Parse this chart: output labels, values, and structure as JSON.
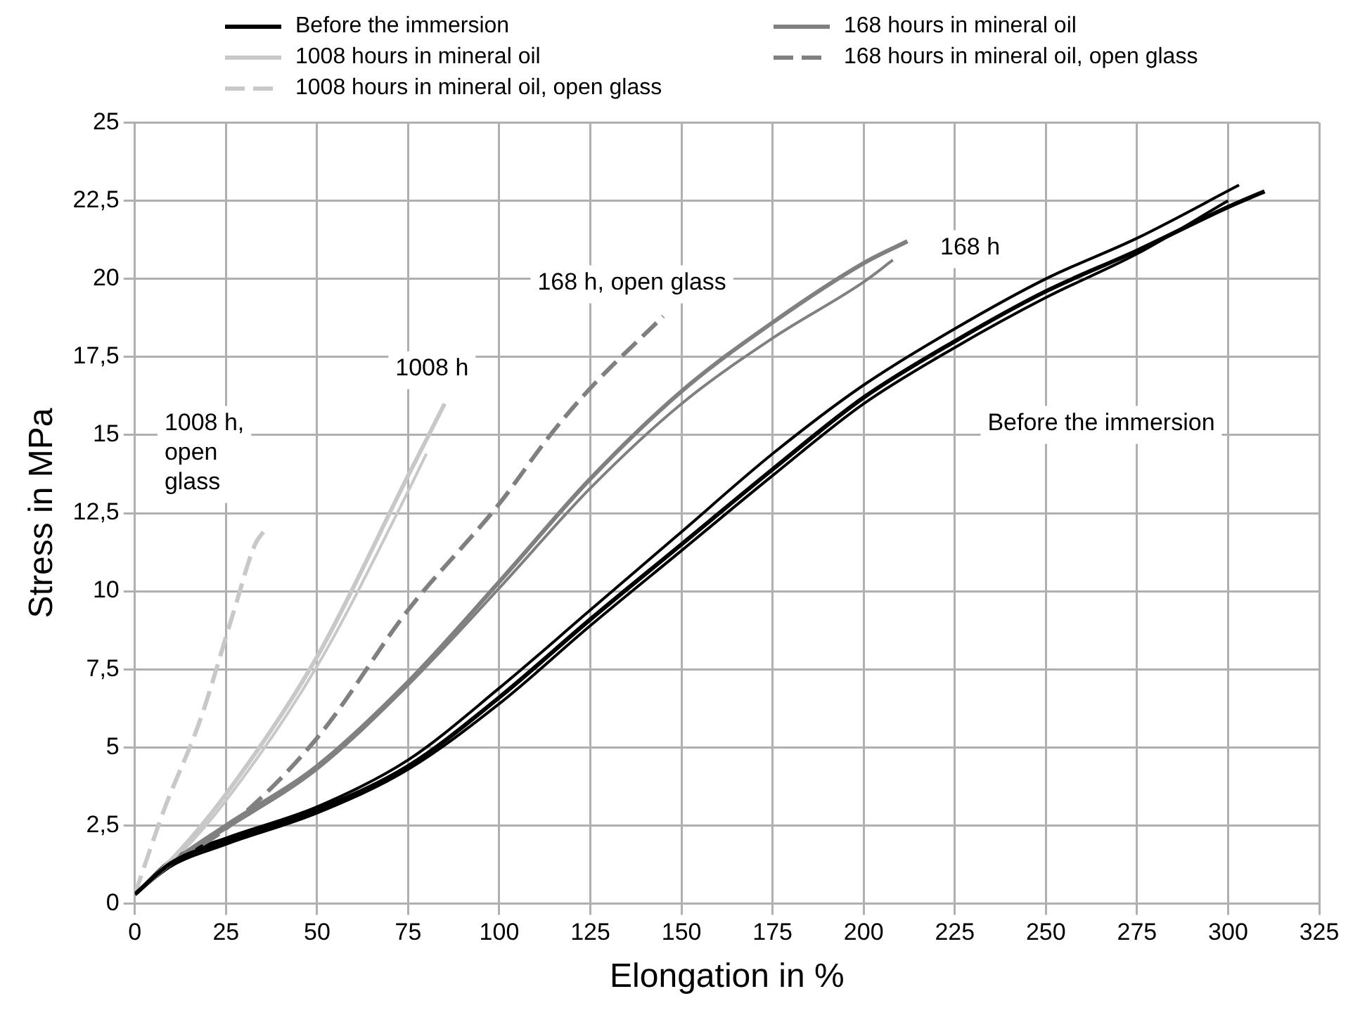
{
  "chart_data": {
    "type": "line",
    "xlabel": "Elongation in %",
    "ylabel": "Stress in MPa",
    "xlim": [
      0,
      325
    ],
    "xticks": [
      0,
      25,
      50,
      75,
      100,
      125,
      150,
      175,
      200,
      225,
      250,
      275,
      300,
      325
    ],
    "ylim": [
      0,
      25
    ],
    "yticks": [
      0,
      {
        "value": 2.5,
        "label": "2,5"
      },
      5,
      {
        "value": 7.5,
        "label": "7,5"
      },
      10,
      {
        "value": 12.5,
        "label": "12,5"
      },
      15,
      {
        "value": 17.5,
        "label": "17,5"
      },
      20,
      {
        "value": 22.5,
        "label": "22,5"
      },
      25
    ],
    "grid": true,
    "legend": "top",
    "marker": "none",
    "series": [
      {
        "name": "Before the immersion",
        "color": "#000000",
        "x": [
          0,
          10,
          25,
          50,
          75,
          100,
          125,
          150,
          175,
          200,
          225,
          250,
          275,
          300,
          310
        ],
        "values": [
          0.3,
          1.3,
          2.0,
          3.0,
          4.4,
          6.6,
          9.1,
          11.5,
          13.9,
          16.2,
          18.0,
          19.6,
          20.9,
          22.3,
          22.8
        ]
      },
      {
        "name": "1008 hours in mineral oil",
        "color": "#c8c8c8",
        "x": [
          0,
          10,
          25,
          50,
          75,
          85
        ],
        "values": [
          0.3,
          1.4,
          3.5,
          7.9,
          13.7,
          16.0
        ]
      },
      {
        "name": "1008 hours in mineral oil, open glass",
        "color": "#c8c8c8",
        "line_style": "dashed",
        "x": [
          0,
          8,
          18,
          27,
          33,
          36
        ],
        "values": [
          0.3,
          3.0,
          5.9,
          9.3,
          11.5,
          12.0
        ]
      },
      {
        "name": "168 hours in mineral oil",
        "color": "#808080",
        "x": [
          0,
          10,
          25,
          50,
          75,
          100,
          125,
          150,
          175,
          200,
          212
        ],
        "values": [
          0.3,
          1.3,
          2.5,
          4.4,
          7.1,
          10.3,
          13.6,
          16.4,
          18.6,
          20.5,
          21.2
        ]
      },
      {
        "name": "168 hours in mineral oil,  open glass",
        "color": "#808080",
        "line_style": "dashed",
        "x": [
          0,
          10,
          25,
          50,
          75,
          100,
          114,
          125,
          145
        ],
        "values": [
          0.3,
          1.3,
          2.4,
          5.3,
          9.4,
          12.8,
          15.0,
          16.5,
          18.8
        ]
      },
      {
        "color": "#000000",
        "x": [
          0,
          10,
          25,
          50,
          75,
          100,
          125,
          150,
          175,
          200,
          225,
          250,
          275,
          303
        ],
        "values": [
          0.3,
          1.4,
          2.1,
          3.1,
          4.6,
          6.9,
          9.4,
          11.9,
          14.4,
          16.6,
          18.4,
          20.0,
          21.3,
          23.0
        ]
      },
      {
        "color": "#000000",
        "x": [
          0,
          10,
          25,
          50,
          75,
          100,
          125,
          150,
          175,
          200,
          225,
          250,
          275,
          300
        ],
        "values": [
          0.3,
          1.2,
          1.9,
          2.9,
          4.3,
          6.4,
          8.9,
          11.3,
          13.7,
          16.0,
          17.8,
          19.4,
          20.8,
          22.5
        ]
      },
      {
        "color": "#808080",
        "x": [
          0,
          10,
          25,
          50,
          75,
          100,
          125,
          150,
          175,
          200,
          208
        ],
        "values": [
          0.3,
          1.3,
          2.4,
          4.3,
          7.0,
          10.1,
          13.3,
          16.0,
          18.1,
          19.9,
          20.6
        ]
      },
      {
        "color": "#c8c8c8",
        "x": [
          0,
          10,
          25,
          50,
          75,
          80
        ],
        "values": [
          0.3,
          1.3,
          3.3,
          7.6,
          13.2,
          14.4
        ]
      }
    ],
    "annotations": [
      "1008 h, open glass",
      "1008 h",
      "168 h, open glass",
      "168 h",
      "Before the immersion"
    ]
  }
}
